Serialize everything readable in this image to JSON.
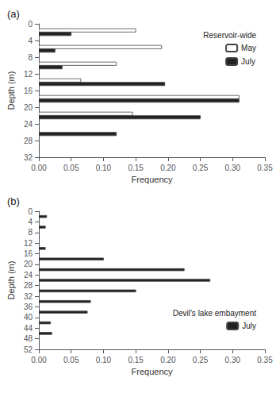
{
  "chart_data": [
    {
      "type": "bar",
      "orientation": "horizontal",
      "title": "(a)",
      "xlabel": "Frequency",
      "ylabel": "Depth (m)",
      "y": [
        2,
        6,
        10,
        14,
        18,
        22,
        26,
        30
      ],
      "series": [
        {
          "name": "May",
          "color": "white",
          "values": [
            0.15,
            0.19,
            0.12,
            0.065,
            0.31,
            0.145,
            0.0,
            0.0
          ]
        },
        {
          "name": "July",
          "color": "#222222",
          "values": [
            0.05,
            0.025,
            0.036,
            0.195,
            0.31,
            0.25,
            0.12,
            0.0
          ]
        }
      ],
      "edge_color": "#444444",
      "xlim": [
        0,
        0.35
      ],
      "xticks": [
        {
          "value": 0,
          "label": "0.00"
        },
        0.05,
        {
          "value": 0.1,
          "label": "0.10"
        },
        0.15,
        {
          "value": 0.2,
          "label": "0.20"
        },
        0.25,
        {
          "value": 0.3,
          "label": "0.30"
        },
        0.35
      ],
      "ylim": [
        32,
        0
      ],
      "yticks": [
        0,
        4,
        8,
        12,
        16,
        20,
        24,
        28,
        32
      ],
      "legend_title": "Reservoir-wide",
      "legend": "upper right",
      "grid": false
    },
    {
      "type": "bar",
      "orientation": "horizontal",
      "title": "(b)",
      "xlabel": "Frequency",
      "ylabel": "Depth (m)",
      "y": [
        2,
        6,
        10,
        14,
        18,
        22,
        26,
        30,
        34,
        38,
        42,
        46,
        50
      ],
      "series": [
        {
          "name": "July",
          "color": "#222222",
          "values": [
            0.012,
            0.01,
            0.0,
            0.01,
            0.1,
            0.225,
            0.265,
            0.15,
            0.08,
            0.075,
            0.018,
            0.02,
            0.0
          ]
        }
      ],
      "edge_color": "#444444",
      "xlim": [
        0,
        0.35
      ],
      "xticks": [
        {
          "value": 0,
          "label": "0.00"
        },
        0.05,
        {
          "value": 0.1,
          "label": "0.10"
        },
        0.15,
        {
          "value": 0.2,
          "label": "0.20"
        },
        0.25,
        {
          "value": 0.3,
          "label": "0.30"
        },
        0.35
      ],
      "ylim": [
        52,
        0
      ],
      "yticks": [
        0,
        4,
        8,
        12,
        16,
        20,
        24,
        28,
        32,
        36,
        40,
        44,
        48,
        52
      ],
      "legend_title": "Devil's lake embayment",
      "legend": "lower right",
      "grid": false
    }
  ]
}
